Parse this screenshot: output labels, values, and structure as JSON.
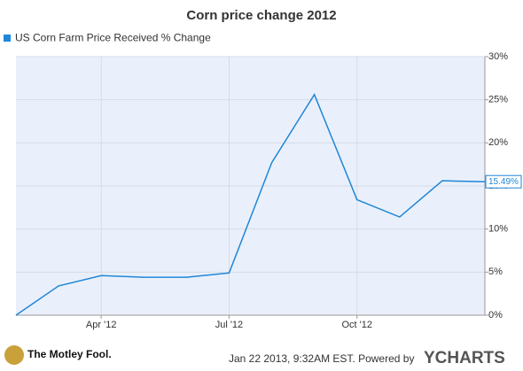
{
  "chart_data": {
    "type": "line",
    "title": "Corn price change 2012",
    "x": [
      "2012-01",
      "2012-02",
      "2012-03",
      "2012-04",
      "2012-05",
      "2012-06",
      "2012-07",
      "2012-08",
      "2012-09",
      "2012-10",
      "2012-11",
      "2012-12"
    ],
    "series": [
      {
        "name": "US Corn Farm Price Received % Change",
        "color": "#1f86d8",
        "values": [
          0,
          3.4,
          4.6,
          4.4,
          4.4,
          4.9,
          17.7,
          25.6,
          13.4,
          11.4,
          15.6,
          15.49
        ],
        "value_labels": [
          null,
          null,
          null,
          null,
          null,
          null,
          null,
          null,
          null,
          null,
          null,
          "15.49%"
        ]
      }
    ],
    "xlim": [
      "2012-01",
      "2012-12"
    ],
    "xticks": [
      {
        "value": "2012-04",
        "label": "Apr '12"
      },
      {
        "value": "2012-07",
        "label": "Jul '12"
      },
      {
        "value": "2012-10",
        "label": "Oct '12"
      }
    ],
    "ylim": [
      0,
      30
    ],
    "yticks": [
      {
        "value": 0,
        "label": "0%"
      },
      {
        "value": 5,
        "label": "5%"
      },
      {
        "value": 10,
        "label": "10%"
      },
      {
        "value": 15,
        "label": "15%"
      },
      {
        "value": 20,
        "label": "20%"
      },
      {
        "value": 25,
        "label": "25%"
      },
      {
        "value": 30,
        "label": "30%"
      }
    ],
    "grid": true
  },
  "footer": {
    "logo": "The Motley Fool.",
    "timestamp": "Jan 22 2013, 9:32AM EST. Powered by",
    "brand": "YCHARTS"
  }
}
